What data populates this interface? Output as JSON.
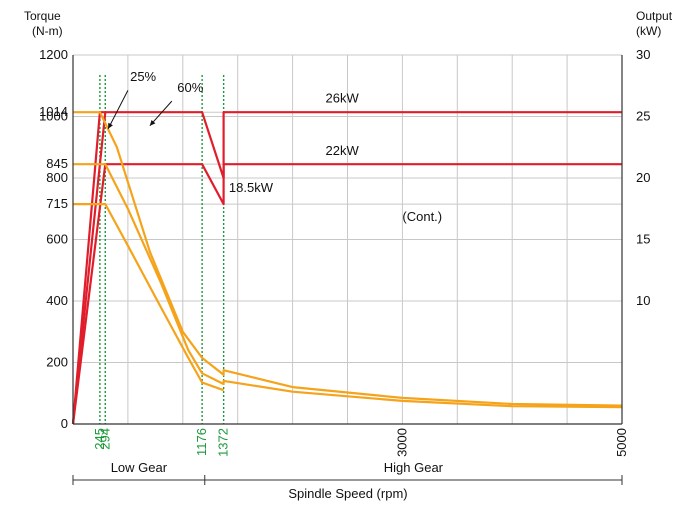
{
  "chart_data": {
    "type": "line",
    "y_left_label_line1": "Torque",
    "y_left_label_line2": "(N-m)",
    "y_right_label_line1": "Output",
    "y_right_label_line2": "(kW)",
    "xlabel": "Spindle Speed (rpm)",
    "x_tick_labels": [
      {
        "x": 245,
        "label": "245",
        "color": "green"
      },
      {
        "x": 294,
        "label": "294",
        "color": "green"
      },
      {
        "x": 1176,
        "label": "1176",
        "color": "green"
      },
      {
        "x": 1372,
        "label": "1372",
        "color": "green"
      },
      {
        "x": 3000,
        "label": "3000",
        "color": "black"
      },
      {
        "x": 5000,
        "label": "5000",
        "color": "black"
      }
    ],
    "y_left_ticks": [
      {
        "value": 0,
        "label": "0"
      },
      {
        "value": 200,
        "label": "200"
      },
      {
        "value": 400,
        "label": "400"
      },
      {
        "value": 600,
        "label": "600"
      },
      {
        "value": 715,
        "label": "715"
      },
      {
        "value": 800,
        "label": "800"
      },
      {
        "value": 845,
        "label": "845"
      },
      {
        "value": 1000,
        "label": "1000"
      },
      {
        "value": 1014,
        "label": "1014"
      },
      {
        "value": 1200,
        "label": "1200"
      }
    ],
    "y_right_ticks": [
      {
        "value": 10,
        "label": "10"
      },
      {
        "value": 15,
        "label": "15"
      },
      {
        "value": 20,
        "label": "20"
      },
      {
        "value": 25,
        "label": "25"
      },
      {
        "value": 30,
        "label": "30"
      }
    ],
    "xlim": [
      0,
      5000
    ],
    "ylim_left": [
      0,
      1200
    ],
    "ylim_right": [
      0,
      30
    ],
    "grid": true,
    "gear_ranges": [
      {
        "label": "Low Gear",
        "from": 0,
        "to": 1200
      },
      {
        "label": "High Gear",
        "from": 1200,
        "to": 5000
      }
    ],
    "annotations": [
      {
        "text": "25%",
        "x": 520,
        "y": 1115
      },
      {
        "text": "60%",
        "x": 950,
        "y": 1080
      },
      {
        "text": "26kW",
        "x": 2300,
        "y": 1045
      },
      {
        "text": "22kW",
        "x": 2300,
        "y": 875
      },
      {
        "text": "18.5kW",
        "x": 1420,
        "y": 755
      },
      {
        "text": "(Cont.)",
        "x": 3000,
        "y": 660
      }
    ],
    "series": [
      {
        "color": "#e01e2b",
        "points": [
          [
            0,
            0
          ],
          [
            245,
            1014
          ],
          [
            1176,
            1014
          ],
          [
            1372,
            800
          ],
          [
            1372,
            1014
          ],
          [
            5000,
            1014
          ]
        ]
      },
      {
        "color": "#e01e2b",
        "points": [
          [
            0,
            0
          ],
          [
            294,
            845
          ],
          [
            1176,
            845
          ],
          [
            1372,
            715
          ],
          [
            1372,
            845
          ],
          [
            5000,
            845
          ]
        ]
      },
      {
        "color": "#e01e2b",
        "points": [
          [
            0,
            0
          ],
          [
            294,
            1014
          ]
        ]
      },
      {
        "color": "#f5a31a",
        "points": [
          [
            0,
            1014
          ],
          [
            245,
            1014
          ],
          [
            400,
            900
          ],
          [
            700,
            560
          ],
          [
            1000,
            300
          ],
          [
            1176,
            215
          ],
          [
            1372,
            160
          ],
          [
            1372,
            175
          ],
          [
            2000,
            120
          ],
          [
            3000,
            85
          ],
          [
            4000,
            65
          ],
          [
            5000,
            60
          ]
        ]
      },
      {
        "color": "#f5a31a",
        "points": [
          [
            0,
            845
          ],
          [
            294,
            845
          ],
          [
            500,
            700
          ],
          [
            800,
            460
          ],
          [
            1050,
            240
          ],
          [
            1176,
            165
          ],
          [
            1372,
            130
          ],
          [
            1372,
            140
          ],
          [
            2000,
            105
          ],
          [
            3000,
            75
          ],
          [
            4000,
            58
          ],
          [
            5000,
            55
          ]
        ]
      },
      {
        "color": "#f5a31a",
        "points": [
          [
            0,
            715
          ],
          [
            294,
            715
          ],
          [
            500,
            580
          ],
          [
            800,
            380
          ],
          [
            1050,
            215
          ],
          [
            1176,
            135
          ],
          [
            1372,
            110
          ]
        ]
      }
    ],
    "marker_lines": [
      245,
      294,
      1176,
      1372
    ],
    "grid_x": [
      500,
      1000,
      1500,
      2000,
      2500,
      3000,
      3500,
      4000,
      4500,
      5000
    ],
    "colors": {
      "red": "#e01e2b",
      "orange": "#f5a31a",
      "green": "#1a9a3a",
      "grid": "#c8c8c8"
    }
  }
}
